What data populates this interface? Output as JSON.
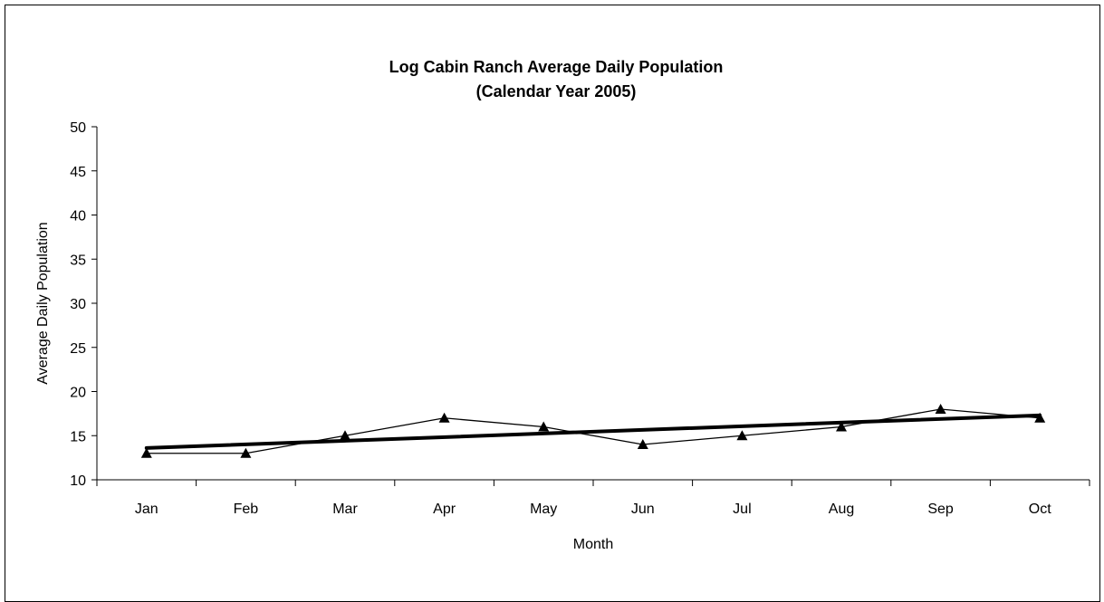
{
  "chart_data": {
    "type": "line",
    "title": "Log Cabin Ranch Average Daily Population",
    "subtitle": "(Calendar Year 2005)",
    "xlabel": "Month",
    "ylabel": "Average Daily Population",
    "categories": [
      "Jan",
      "Feb",
      "Mar",
      "Apr",
      "May",
      "Jun",
      "Jul",
      "Aug",
      "Sep",
      "Oct"
    ],
    "series": [
      {
        "values": [
          13,
          13,
          15,
          17,
          16,
          14,
          15,
          16,
          18,
          17
        ],
        "marker": "triangle",
        "color": "#000000"
      }
    ],
    "trendline": {
      "type": "linear",
      "start": 13.6,
      "end": 17.3,
      "color": "#000000"
    },
    "ylim": [
      10,
      50
    ],
    "yticks": [
      10,
      15,
      20,
      25,
      30,
      35,
      40,
      45,
      50
    ],
    "grid": false,
    "legend": "none"
  }
}
